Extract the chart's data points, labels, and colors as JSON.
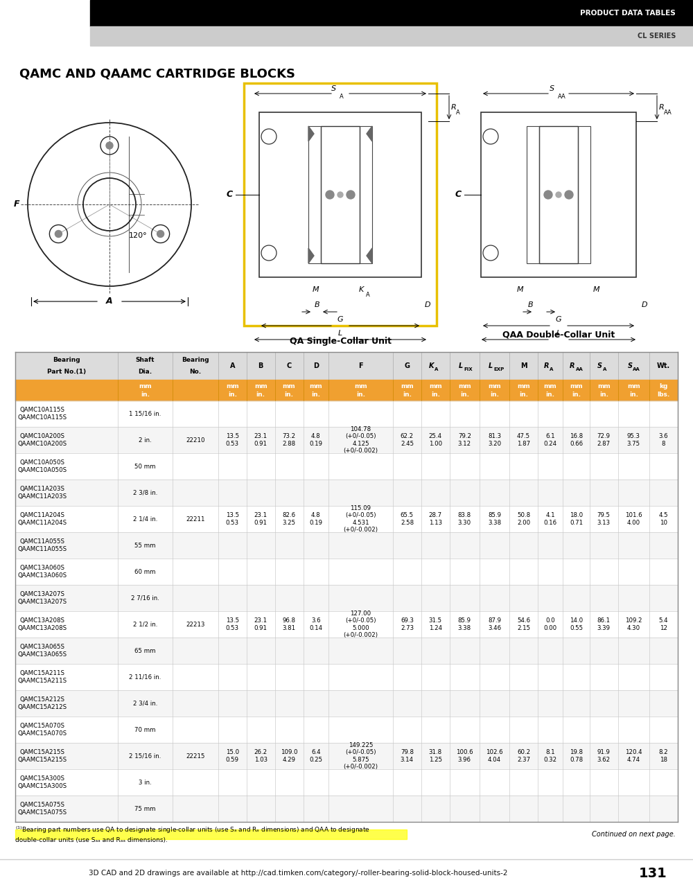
{
  "header_black_text": "PRODUCT DATA TABLES",
  "header_gray_text": "CL SERIES",
  "main_title": "QAMC AND QAAMC CARTRIDGE BLOCKS",
  "qa_label": "QA Single-Collar Unit",
  "qaa_label": "QAA Double-Collar Unit",
  "table_orange": "#F0A030",
  "page_note": "Continued on next page.",
  "page_number": "131",
  "bottom_note": "3D CAD and 2D drawings are available at http://cad.timken.com/category/-roller-bearing-solid-block-housed-units-2",
  "col_headers_line1": [
    "Bearing",
    "Shaft",
    "Bearing",
    "A",
    "B",
    "C",
    "D",
    "F",
    "G",
    "Kₐ",
    "L",
    "L",
    "M",
    "Rₐ",
    "Rₐₐ",
    "Sₐ",
    "Sₐₐ",
    "Wt."
  ],
  "col_headers_line2": [
    "Part No.(1)",
    "Dia.",
    "No.",
    "",
    "",
    "",
    "",
    "",
    "",
    "",
    "FIX",
    "EXP",
    "",
    "",
    "",
    "",
    "",
    ""
  ],
  "unit_row_top": [
    "",
    "mm",
    "",
    "mm",
    "mm",
    "mm",
    "mm",
    "mm",
    "mm",
    "mm",
    "mm",
    "mm",
    "mm",
    "mm",
    "mm",
    "mm",
    "mm",
    "kg"
  ],
  "unit_row_bot": [
    "",
    "in.",
    "",
    "in.",
    "in.",
    "in.",
    "in.",
    "in.",
    "in.",
    "in.",
    "in.",
    "in.",
    "in.",
    "in.",
    "in.",
    "in.",
    "in.",
    "lbs."
  ],
  "col_widths_rel": [
    130,
    70,
    58,
    36,
    36,
    36,
    32,
    82,
    36,
    36,
    38,
    38,
    36,
    32,
    34,
    36,
    40,
    36
  ],
  "rows": [
    [
      "QAMC10A115S",
      "QAAMC10A115S",
      "1 15/16 in.",
      "",
      "",
      "",
      "",
      "",
      "104.78",
      "(+0/-0.05)",
      "4.125",
      "(+0/-0.002)",
      "",
      "",
      "",
      "",
      "",
      "",
      "",
      "",
      "",
      "",
      "",
      "",
      "",
      ""
    ],
    [
      "QAMC10A200S",
      "QAAMC10A200S",
      "2 in.",
      "22210",
      "13.5",
      "0.53",
      "23.1",
      "0.91",
      "73.2",
      "2.88",
      "4.8",
      "0.19",
      "104.78",
      "(+0/-0.05)",
      "4.125",
      "(+0/-0.002)",
      "62.2",
      "2.45",
      "25.4",
      "1.00",
      "79.2",
      "3.12",
      "81.3",
      "3.20",
      "47.5",
      "1.87",
      "6.1",
      "0.24",
      "16.8",
      "0.66",
      "72.9",
      "2.87",
      "95.3",
      "3.75",
      "3.6",
      "8"
    ],
    [
      "QAMC10A050S",
      "QAAMC10A050S",
      "50 mm",
      "",
      "",
      "",
      "",
      "",
      "",
      "",
      "",
      "",
      "",
      "",
      "",
      "",
      "",
      "",
      "",
      "",
      "",
      "",
      "",
      "",
      "",
      ""
    ],
    [
      "QAMC11A203S",
      "QAAMC11A203S",
      "2 3/8 in.",
      "",
      "",
      "",
      "",
      "",
      "115.09",
      "(+0/-0.05)",
      "4.531",
      "(+0/-0.002)",
      "",
      "",
      "",
      "",
      "",
      "",
      "",
      "",
      "",
      "",
      "",
      "",
      "",
      ""
    ],
    [
      "QAMC11A204S",
      "QAAMC11A204S",
      "2 1/4 in.",
      "22211",
      "13.5",
      "0.53",
      "23.1",
      "0.91",
      "82.6",
      "3.25",
      "4.8",
      "0.19",
      "115.09",
      "(+0/-0.05)",
      "4.531",
      "(+0/-0.002)",
      "65.5",
      "2.58",
      "28.7",
      "1.13",
      "83.8",
      "3.30",
      "85.9",
      "3.38",
      "50.8",
      "2.00",
      "4.1",
      "0.16",
      "18.0",
      "0.71",
      "79.5",
      "3.13",
      "101.6",
      "4.00",
      "4.5",
      "10"
    ],
    [
      "QAMC11A055S",
      "QAAMC11A055S",
      "55 mm",
      "",
      "",
      "",
      "",
      "",
      "",
      "",
      "",
      "",
      "",
      "",
      "",
      "",
      "",
      "",
      "",
      "",
      "",
      "",
      "",
      "",
      "",
      ""
    ],
    [
      "QAMC13A060S",
      "QAAMC13A060S",
      "60 mm",
      "",
      "",
      "",
      "",
      "",
      "",
      "",
      "",
      "",
      "",
      "",
      "",
      "",
      "",
      "",
      "",
      "",
      "",
      "",
      "",
      "",
      "",
      ""
    ],
    [
      "QAMC13A207S",
      "QAAMC13A207S",
      "2 7/16 in.",
      "",
      "",
      "",
      "",
      "",
      "127.00",
      "(+0/-0.05)",
      "5.000",
      "(+0/-0.002)",
      "",
      "",
      "",
      "",
      "",
      "",
      "",
      "",
      "",
      "",
      "",
      "",
      "",
      ""
    ],
    [
      "QAMC13A208S",
      "QAAMC13A208S",
      "2 1/2 in.",
      "22213",
      "13.5",
      "0.53",
      "23.1",
      "0.91",
      "96.8",
      "3.81",
      "3.6",
      "0.14",
      "127.00",
      "(+0/-0.05)",
      "5.000",
      "(+0/-0.002)",
      "69.3",
      "2.73",
      "31.5",
      "1.24",
      "85.9",
      "3.38",
      "87.9",
      "3.46",
      "54.6",
      "2.15",
      "0.0",
      "0.00",
      "14.0",
      "0.55",
      "86.1",
      "3.39",
      "109.2",
      "4.30",
      "5.4",
      "12"
    ],
    [
      "QAMC13A065S",
      "QAAMC13A065S",
      "65 mm",
      "",
      "",
      "",
      "",
      "",
      "",
      "",
      "",
      "",
      "",
      "",
      "",
      "",
      "",
      "",
      "",
      "",
      "",
      "",
      "",
      "",
      "",
      ""
    ],
    [
      "QAMC15A211S",
      "QAAMC15A211S",
      "2 11/16 in.",
      "",
      "",
      "",
      "",
      "",
      "",
      "",
      "",
      "",
      "",
      "",
      "",
      "",
      "",
      "",
      "",
      "",
      "",
      "",
      "",
      "",
      "",
      ""
    ],
    [
      "QAMC15A212S",
      "QAAMC15A212S",
      "2 3/4 in.",
      "",
      "",
      "",
      "",
      "",
      "",
      "",
      "",
      "",
      "",
      "",
      "",
      "",
      "",
      "",
      "",
      "",
      "",
      "",
      "",
      "",
      "",
      ""
    ],
    [
      "QAMC15A070S",
      "QAAMC15A070S",
      "70 mm",
      "",
      "",
      "",
      "",
      "",
      "149.225",
      "(+0/-0.05)",
      "5.875",
      "(+0/-0.002)",
      "",
      "",
      "",
      "",
      "",
      "",
      "",
      "",
      "",
      "",
      "",
      "",
      "",
      ""
    ],
    [
      "QAMC15A215S",
      "QAAMC15A215S",
      "2 15/16 in.",
      "22215",
      "15.0",
      "0.59",
      "26.2",
      "1.03",
      "109.0",
      "4.29",
      "6.4",
      "0.25",
      "149.225",
      "(+0/-0.05)",
      "5.875",
      "(+0/-0.002)",
      "79.8",
      "3.14",
      "31.8",
      "1.25",
      "100.6",
      "3.96",
      "102.6",
      "4.04",
      "60.2",
      "2.37",
      "8.1",
      "0.32",
      "19.8",
      "0.78",
      "91.9",
      "3.62",
      "120.4",
      "4.74",
      "8.2",
      "18"
    ],
    [
      "QAMC15A300S",
      "QAAMC15A300S",
      "3 in.",
      "",
      "",
      "",
      "",
      "",
      "",
      "",
      "",
      "",
      "",
      "",
      "",
      "",
      "",
      "",
      "",
      "",
      "",
      "",
      "",
      "",
      "",
      ""
    ],
    [
      "QAMC15A075S",
      "QAAMC15A075S",
      "75 mm",
      "",
      "",
      "",
      "",
      "",
      "",
      "",
      "",
      "",
      "",
      "",
      "",
      "",
      "",
      "",
      "",
      "",
      "",
      "",
      "",
      "",
      "",
      ""
    ]
  ]
}
